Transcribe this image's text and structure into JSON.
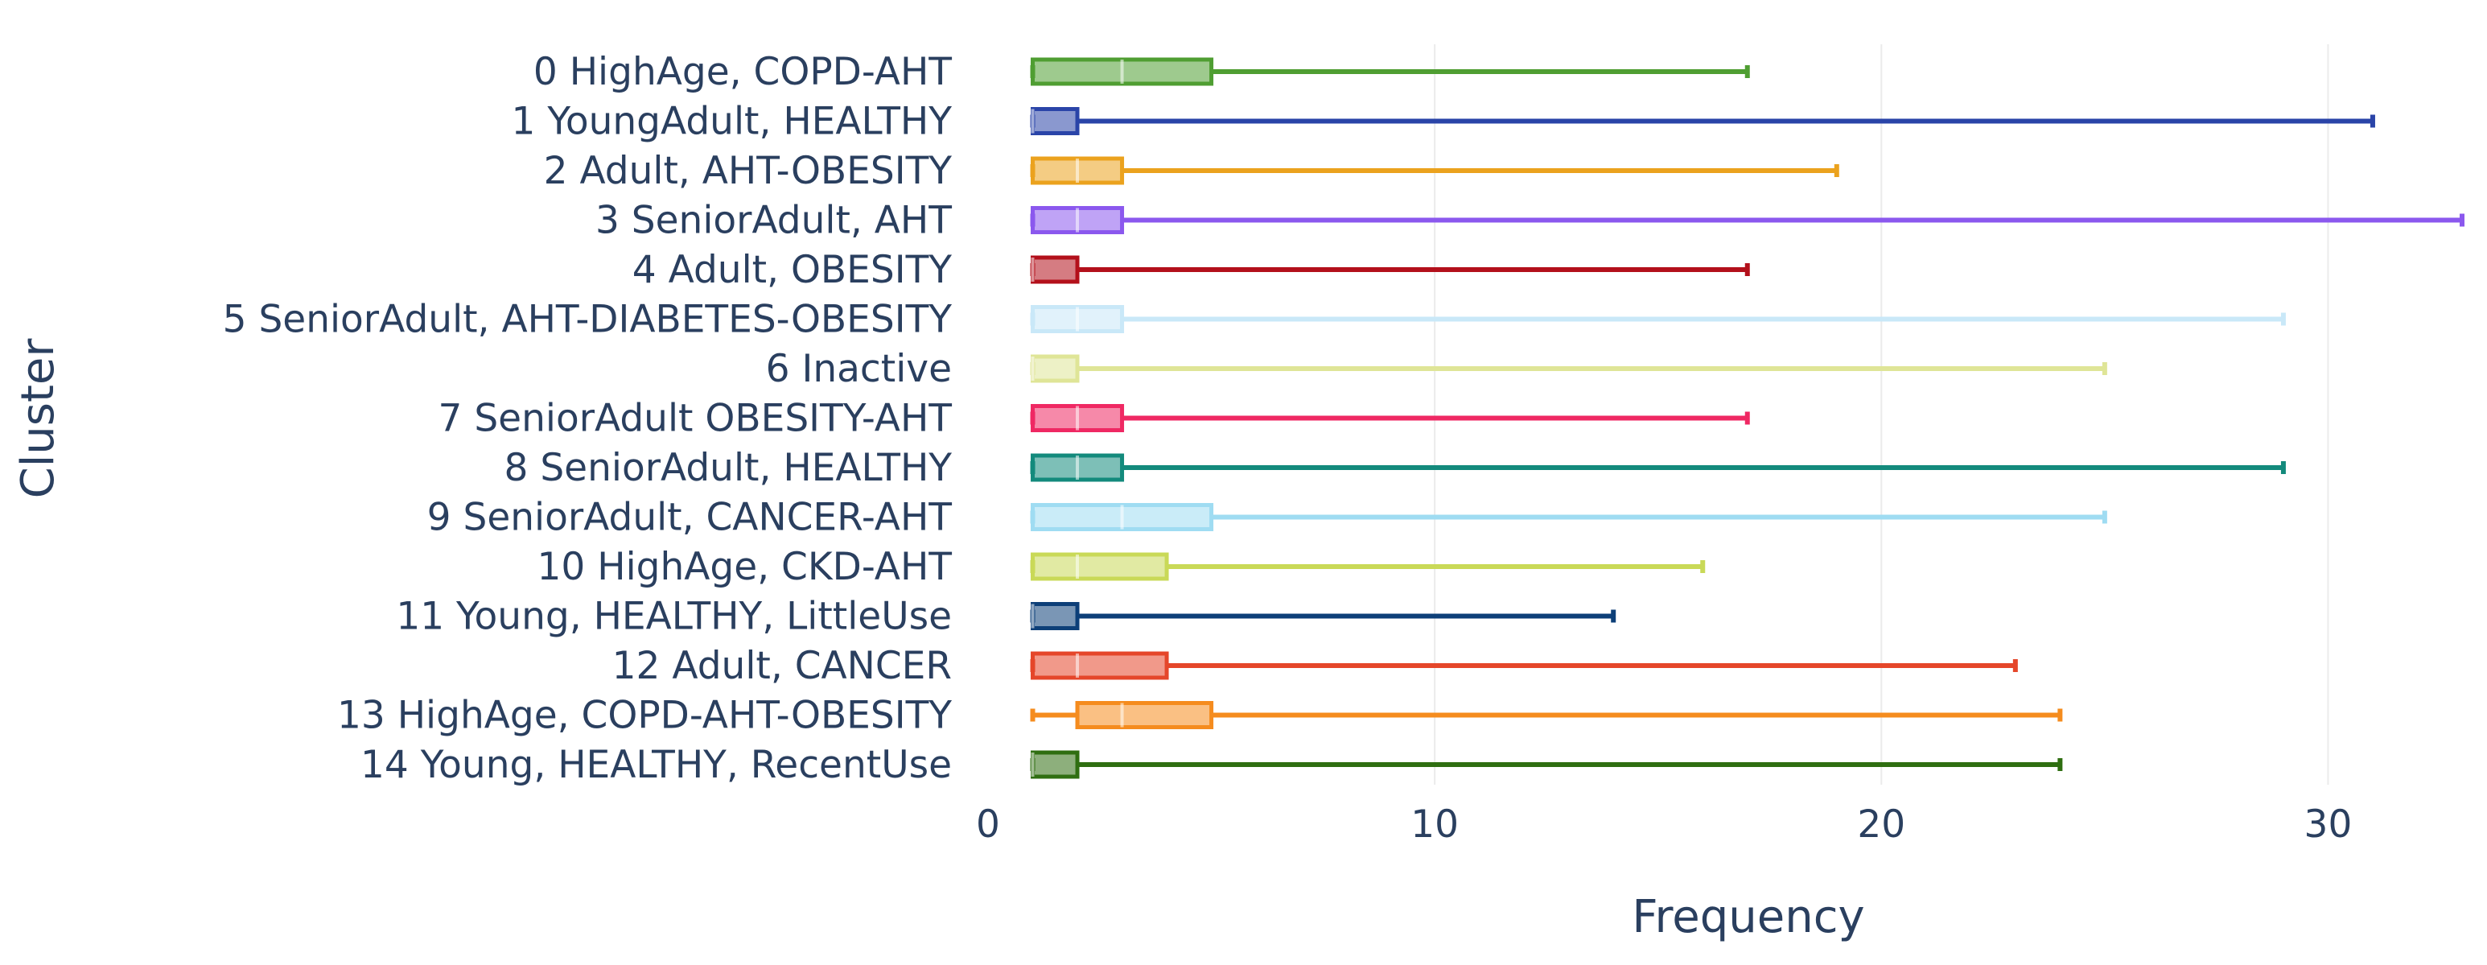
{
  "chart_data": {
    "type": "box",
    "orientation": "horizontal",
    "title": "",
    "xlabel": "Frequency",
    "ylabel": "Cluster",
    "xlim": [
      0,
      33
    ],
    "xticks": [
      0,
      10,
      20,
      30
    ],
    "grid": true,
    "legend": false,
    "series": [
      {
        "name": "0 HighAge, COPD-AHT",
        "min": 1,
        "q1": 1,
        "median": 3,
        "q3": 5,
        "max": 17,
        "color": "#4f9e32"
      },
      {
        "name": "1 YoungAdult, HEALTHY",
        "min": 1,
        "q1": 1,
        "median": 1,
        "q3": 2,
        "max": 31,
        "color": "#2a44a8"
      },
      {
        "name": "2 Adult, AHT-OBESITY",
        "min": 1,
        "q1": 1,
        "median": 2,
        "q3": 3,
        "max": 19,
        "color": "#eba21e"
      },
      {
        "name": "3 SeniorAdult, AHT",
        "min": 1,
        "q1": 1,
        "median": 2,
        "q3": 3,
        "max": 33,
        "color": "#8b58ee"
      },
      {
        "name": "4 Adult, OBESITY",
        "min": 1,
        "q1": 1,
        "median": 1,
        "q3": 2,
        "max": 17,
        "color": "#b3101b"
      },
      {
        "name": "5 SeniorAdult, AHT-DIABETES-OBESITY",
        "min": 1,
        "q1": 1,
        "median": 2,
        "q3": 3,
        "max": 29,
        "color": "#c9e8f8"
      },
      {
        "name": "6 Inactive",
        "min": 1,
        "q1": 1,
        "median": 1,
        "q3": 2,
        "max": 25,
        "color": "#dfe597"
      },
      {
        "name": "7 SeniorAdult OBESITY-AHT",
        "min": 1,
        "q1": 1,
        "median": 2,
        "q3": 3,
        "max": 17,
        "color": "#ef2863"
      },
      {
        "name": "8 SeniorAdult, HEALTHY",
        "min": 1,
        "q1": 1,
        "median": 2,
        "q3": 3,
        "max": 29,
        "color": "#138a7c"
      },
      {
        "name": "9 SeniorAdult, CANCER-AHT",
        "min": 1,
        "q1": 1,
        "median": 3,
        "q3": 5,
        "max": 25,
        "color": "#9fdcf2"
      },
      {
        "name": "10 HighAge, CKD-AHT",
        "min": 1,
        "q1": 1,
        "median": 2,
        "q3": 4,
        "max": 16,
        "color": "#c9d957"
      },
      {
        "name": "11 Young, HEALTHY, LittleUse",
        "min": 1,
        "q1": 1,
        "median": 1,
        "q3": 2,
        "max": 14,
        "color": "#0d3f78"
      },
      {
        "name": "12 Adult, CANCER",
        "min": 1,
        "q1": 1,
        "median": 2,
        "q3": 4,
        "max": 23,
        "color": "#e5462a"
      },
      {
        "name": "13 HighAge, COPD-AHT-OBESITY",
        "min": 1,
        "q1": 2,
        "median": 3,
        "q3": 5,
        "max": 24,
        "color": "#f58c1e"
      },
      {
        "name": "14 Young, HEALTHY, RecentUse",
        "min": 1,
        "q1": 1,
        "median": 1,
        "q3": 2,
        "max": 24,
        "color": "#2f6e11"
      }
    ]
  }
}
